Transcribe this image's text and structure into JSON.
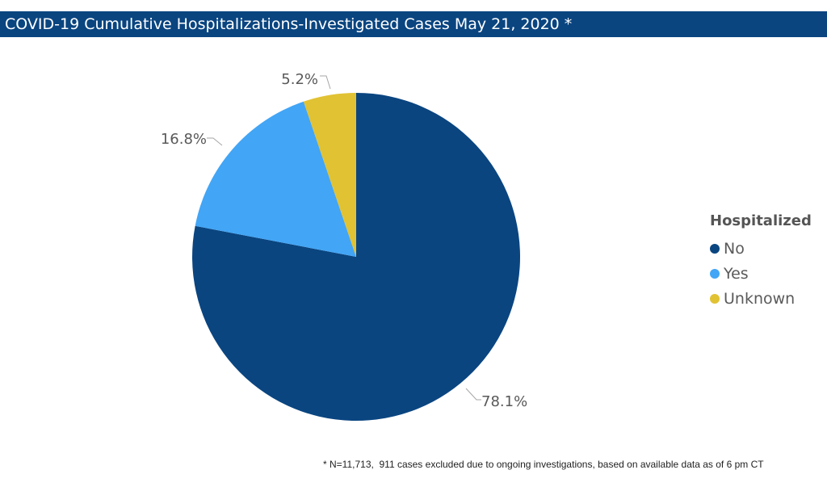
{
  "title": "COVID-19 Cumulative Hospitalizations-Investigated Cases May 21, 2020 *",
  "footnote": "* N=11,713,  911 cases excluded due to ongoing investigations, based on available data as of 6 pm CT",
  "legend": {
    "title": "Hospitalized",
    "items": [
      {
        "label": "No",
        "color": "#0a4580"
      },
      {
        "label": "Yes",
        "color": "#42a5f5"
      },
      {
        "label": "Unknown",
        "color": "#e1c233"
      }
    ]
  },
  "colors": {
    "title_bar": "#0a4580",
    "label_text": "#595959",
    "leader_line": "#a6a6a6"
  },
  "chart_data": {
    "type": "pie",
    "title": "COVID-19 Cumulative Hospitalizations-Investigated Cases May 21, 2020 *",
    "legend_title": "Hospitalized",
    "legend_position": "right",
    "slices": [
      {
        "label": "No",
        "value": 78.1,
        "display": "78.1%",
        "color": "#0a4580"
      },
      {
        "label": "Yes",
        "value": 16.8,
        "display": "16.8%",
        "color": "#42a5f5"
      },
      {
        "label": "Unknown",
        "value": 5.2,
        "display": "5.2%",
        "color": "#e1c233"
      }
    ]
  }
}
